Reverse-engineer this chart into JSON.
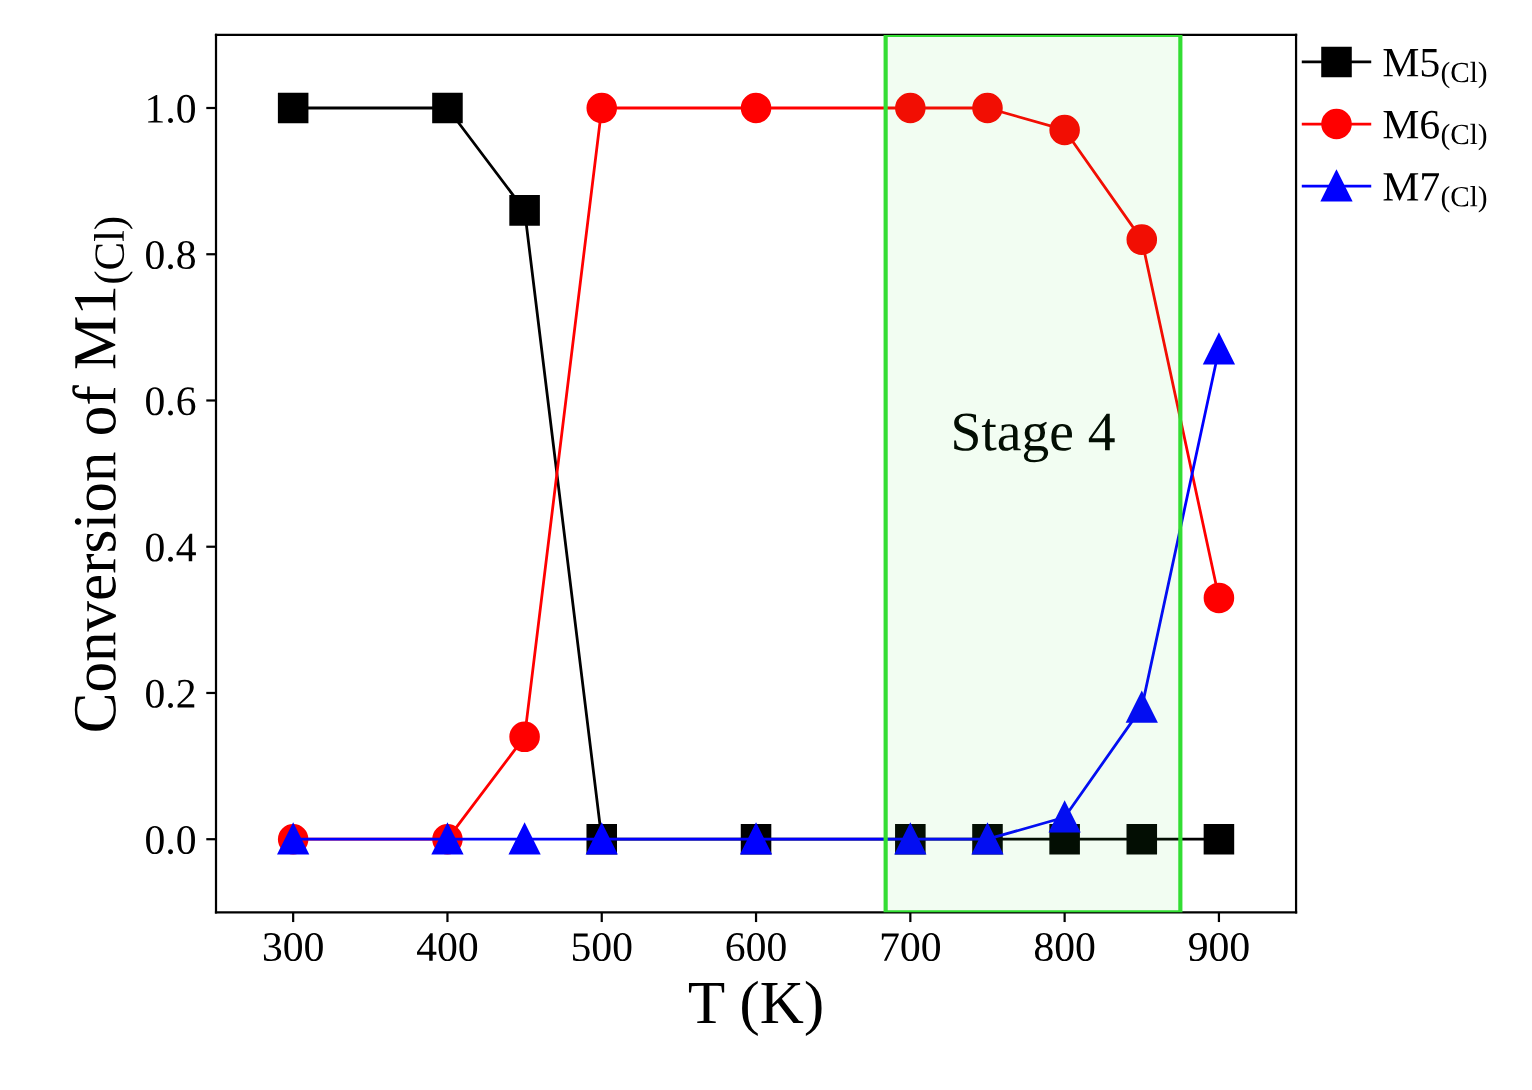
{
  "chart_data": {
    "type": "line",
    "xlabel": "T (K)",
    "ylabel": "Conversion of M1$_{(Cl)}$",
    "x": [
      300,
      400,
      450,
      500,
      600,
      700,
      750,
      800,
      850,
      900
    ],
    "series": [
      {
        "name": "M5$_{(Cl)}$",
        "color": "#000000",
        "marker": "square",
        "values": [
          1,
          1,
          0.86,
          0,
          0,
          0,
          0,
          0,
          0,
          0
        ]
      },
      {
        "name": "M6$_{(Cl)}$",
        "color": "#ff0000",
        "marker": "circle",
        "values": [
          0,
          0,
          0.14,
          1,
          1,
          1,
          1,
          0.97,
          0.82,
          0.33
        ]
      },
      {
        "name": "M7$_{(Cl)}$",
        "color": "#0000ff",
        "marker": "triangle",
        "values": [
          0,
          0,
          0,
          0,
          0,
          0,
          0,
          0.03,
          0.18,
          0.67
        ]
      }
    ],
    "bands": [
      {
        "axis": "x",
        "from": 684,
        "to": 875,
        "label": "Stage 4",
        "color": "#33dd33"
      }
    ],
    "xlim": [
      250,
      950
    ],
    "xticks": [
      300,
      400,
      500,
      600,
      700,
      800,
      900
    ],
    "ylim": [
      -0.1,
      1.1
    ],
    "yticks": [
      {
        "value": 0,
        "label": "0.0"
      },
      {
        "value": 0.2,
        "label": "0.2"
      },
      {
        "value": 0.4,
        "label": "0.4"
      },
      {
        "value": 0.6,
        "label": "0.6"
      },
      {
        "value": 0.8,
        "label": "0.8"
      },
      {
        "value": 1,
        "label": "1.0"
      }
    ],
    "grid": false,
    "legend": "right",
    "line_style": "solid"
  }
}
